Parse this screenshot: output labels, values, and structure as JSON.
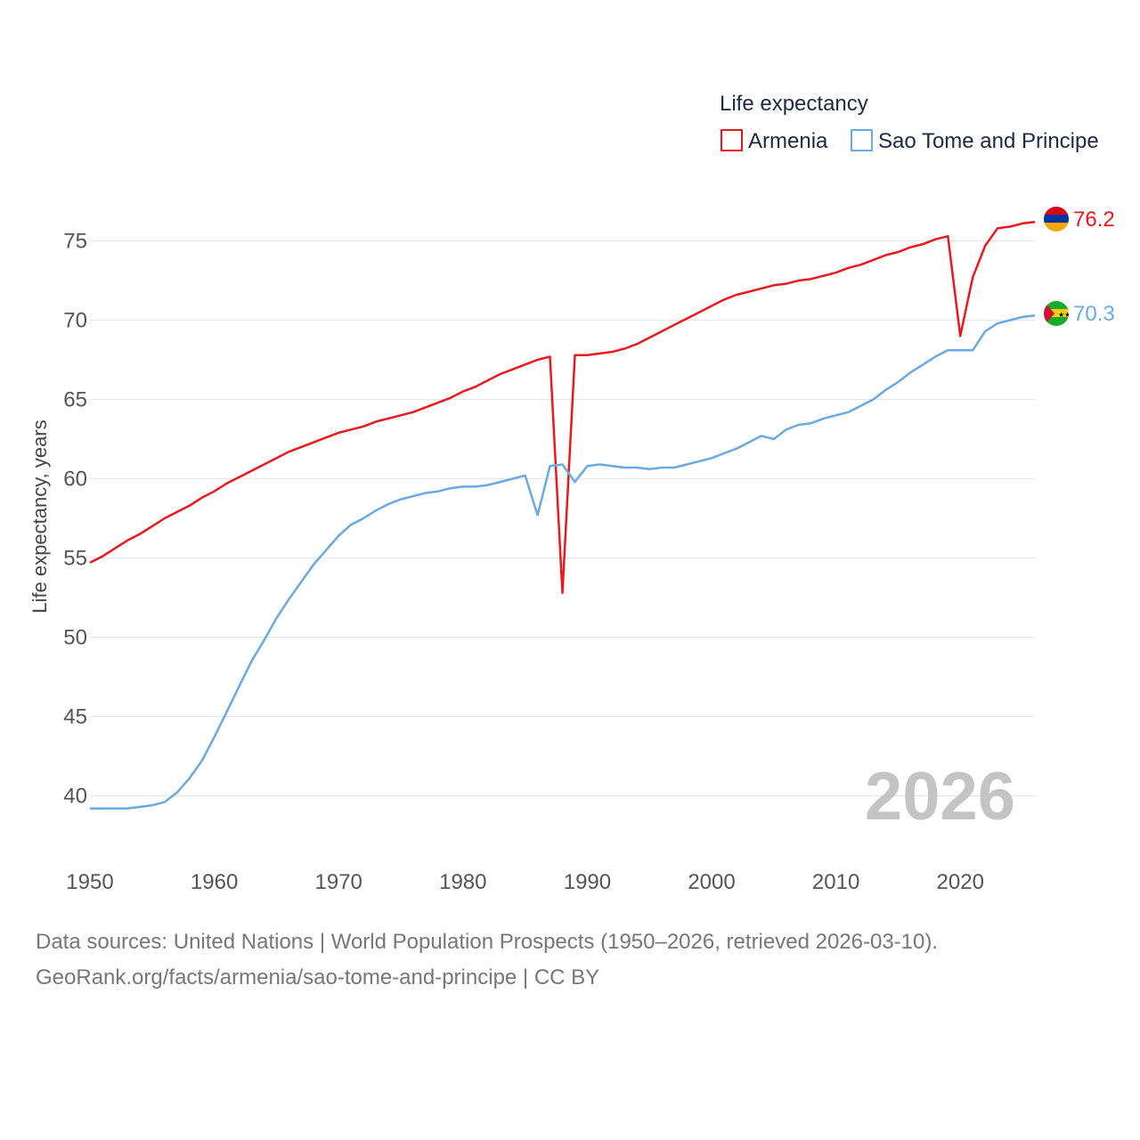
{
  "colors": {
    "armenia": "#e8191f",
    "sao_tome": "#6aaae4",
    "grid": "#e6e6e6",
    "watermark": "#c4c4c4"
  },
  "chart_data": {
    "type": "line",
    "title": "",
    "xlabel": "",
    "ylabel": "Life expectancy, years",
    "xlim": [
      1950,
      2026
    ],
    "ylim": [
      37,
      77
    ],
    "yticks": [
      40,
      45,
      50,
      55,
      60,
      65,
      70,
      75
    ],
    "xticks": [
      1950,
      1960,
      1970,
      1980,
      1990,
      2000,
      2010,
      2020
    ],
    "grid": true,
    "legend": {
      "title": "Life expectancy",
      "position": "top-right",
      "entries": [
        "Armenia",
        "Sao Tome and Principe"
      ]
    },
    "year_label": "2026",
    "x": [
      1950,
      1951,
      1952,
      1953,
      1954,
      1955,
      1956,
      1957,
      1958,
      1959,
      1960,
      1961,
      1962,
      1963,
      1964,
      1965,
      1966,
      1967,
      1968,
      1969,
      1970,
      1971,
      1972,
      1973,
      1974,
      1975,
      1976,
      1977,
      1978,
      1979,
      1980,
      1981,
      1982,
      1983,
      1984,
      1985,
      1986,
      1987,
      1988,
      1989,
      1990,
      1991,
      1992,
      1993,
      1994,
      1995,
      1996,
      1997,
      1998,
      1999,
      2000,
      2001,
      2002,
      2003,
      2004,
      2005,
      2006,
      2007,
      2008,
      2009,
      2010,
      2011,
      2012,
      2013,
      2014,
      2015,
      2016,
      2017,
      2018,
      2019,
      2020,
      2021,
      2022,
      2023,
      2024,
      2025,
      2026
    ],
    "series": [
      {
        "name": "Armenia",
        "color_key": "armenia",
        "end_label": "76.2",
        "flag": "armenia-flag",
        "values": [
          54.7,
          55.1,
          55.6,
          56.1,
          56.5,
          57.0,
          57.5,
          57.9,
          58.3,
          58.8,
          59.2,
          59.7,
          60.1,
          60.5,
          60.9,
          61.3,
          61.7,
          62.0,
          62.3,
          62.6,
          62.9,
          63.1,
          63.3,
          63.6,
          63.8,
          64.0,
          64.2,
          64.5,
          64.8,
          65.1,
          65.5,
          65.8,
          66.2,
          66.6,
          66.9,
          67.2,
          67.5,
          67.7,
          52.8,
          67.8,
          67.8,
          67.9,
          68.0,
          68.2,
          68.5,
          68.9,
          69.3,
          69.7,
          70.1,
          70.5,
          70.9,
          71.3,
          71.6,
          71.8,
          72.0,
          72.2,
          72.3,
          72.5,
          72.6,
          72.8,
          73.0,
          73.3,
          73.5,
          73.8,
          74.1,
          74.3,
          74.6,
          74.8,
          75.1,
          75.3,
          69.0,
          72.7,
          74.7,
          75.8,
          75.9,
          76.1,
          76.2
        ]
      },
      {
        "name": "Sao Tome and Principe",
        "color_key": "sao_tome",
        "end_label": "70.3",
        "flag": "sao-tome-flag",
        "values": [
          39.2,
          39.2,
          39.2,
          39.2,
          39.3,
          39.4,
          39.6,
          40.2,
          41.1,
          42.2,
          43.7,
          45.3,
          46.9,
          48.5,
          49.8,
          51.2,
          52.4,
          53.5,
          54.6,
          55.5,
          56.4,
          57.1,
          57.5,
          58.0,
          58.4,
          58.7,
          58.9,
          59.1,
          59.2,
          59.4,
          59.5,
          59.5,
          59.6,
          59.8,
          60.0,
          60.2,
          57.7,
          60.8,
          60.9,
          59.8,
          60.8,
          60.9,
          60.8,
          60.7,
          60.7,
          60.6,
          60.7,
          60.7,
          60.9,
          61.1,
          61.3,
          61.6,
          61.9,
          62.3,
          62.7,
          62.5,
          63.1,
          63.4,
          63.5,
          63.8,
          64.0,
          64.2,
          64.6,
          65.0,
          65.6,
          66.1,
          66.7,
          67.2,
          67.7,
          68.1,
          68.1,
          68.1,
          69.3,
          69.8,
          70.0,
          70.2,
          70.3
        ]
      }
    ]
  },
  "footer": {
    "line1": "Data sources: United Nations | World Population Prospects (1950–2026, retrieved 2026-03-10).",
    "line2": "GeoRank.org/facts/armenia/sao-tome-and-principe | CC BY"
  }
}
